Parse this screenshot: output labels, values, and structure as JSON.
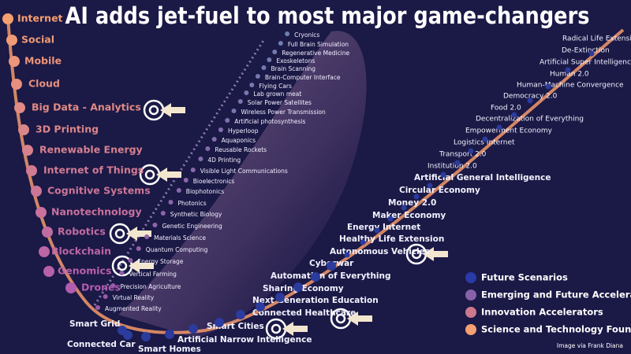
{
  "title": "AI adds jet-fuel to most major game-changers",
  "left_curve": [
    "Internet",
    "Social",
    "Mobile",
    "Cloud",
    "Big Data - Analytics",
    "3D Printing",
    "Renewable Energy",
    "Internet of Things",
    "Cognitive Systems",
    "Nanotechnology",
    "Robotics",
    "Blockchain",
    "Genomics",
    "Drones"
  ],
  "middle_line": [
    "Augmented Reality",
    "Virtual Reality",
    "Precision Agriculture",
    "Vertical Farming",
    "Energy Storage",
    "Quantum Computing",
    "Materials Science",
    "Genetic Engineering",
    "Synthetic Biology",
    "Photonics",
    "Biophotonics",
    "Bioelectronics",
    "Visible Light Communications",
    "4D Printing",
    "Reusable Rockets",
    "Aquaponics",
    "Hyperloop",
    "Artificial photosynthesis",
    "Wireless Power Transmission",
    "Solar Power Satellites",
    "Lab grown meat",
    "Flying Cars",
    "Brain-Computer Interface",
    "Brain Scanning",
    "Exoskeletons",
    "Regenerative Medicine",
    "Full Brain Simulation",
    "Cryonics"
  ],
  "bottom_curve": [
    "Smart Grid",
    "Connected Car",
    "Smart Homes",
    "Artificial Narrow Intelligence",
    "Smart Cities",
    "Connected Healthcare",
    "Next Generation Education",
    "Sharing Economy",
    "Automation of Everything",
    "Cyberwar",
    "Autonomous Vehicles",
    "Healthy Life Extension",
    "Energy Internet",
    "Maker Economy",
    "Money 2.0",
    "Circular Economy",
    "Artificial General Intelligence",
    "Institution 2.0",
    "Transport 2.0",
    "Logistics Internet",
    "Empowerment Economy",
    "Decentralization of Everything",
    "Food 2.0",
    "Democracy 2.0",
    "Human-Machine Convergence",
    "Human 2.0",
    "Artificial Super Intelligence",
    "De-Extinction",
    "Radical Life Extension"
  ],
  "legend": [
    "Future Scenarios",
    "Emerging and Future Accelerators",
    "Innovation Accelerators",
    "Science and Technology Foundation"
  ],
  "credit": "Image via Frank Diana"
}
